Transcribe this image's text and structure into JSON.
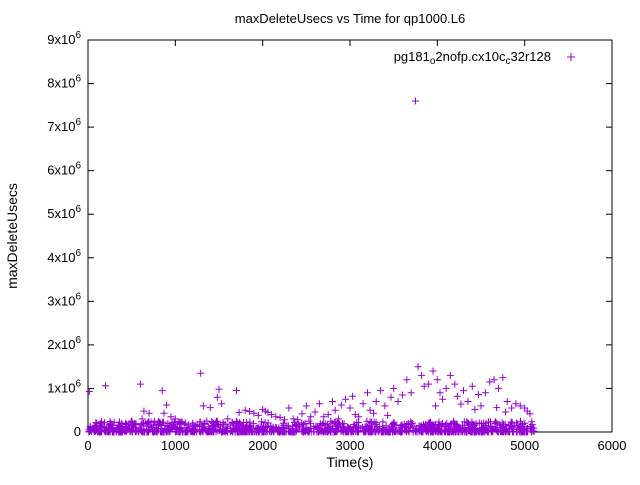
{
  "chart_data": {
    "type": "scatter",
    "title": "maxDeleteUsecs vs Time for qp1000.L6",
    "xlabel": "Time(s)",
    "ylabel": "maxDeleteUsecs",
    "xlim": [
      0,
      6000
    ],
    "ylim": [
      0,
      9000000
    ],
    "grid": false,
    "x_ticks": [
      0,
      1000,
      2000,
      3000,
      4000,
      5000,
      6000
    ],
    "x_tick_labels": [
      "0",
      "1000",
      "2000",
      "3000",
      "4000",
      "5000",
      "6000"
    ],
    "y_ticks": [
      0,
      1000000,
      2000000,
      3000000,
      4000000,
      5000000,
      6000000,
      7000000,
      8000000,
      9000000
    ],
    "y_tick_labels": [
      "0",
      "1x10^6",
      "2x10^6",
      "3x10^6",
      "4x10^6",
      "5x10^6",
      "6x10^6",
      "7x10^6",
      "8x10^6",
      "9x10^6"
    ],
    "legend": {
      "position": "top-right",
      "marker": "plus",
      "label_plain": "pg181_o2nofp.cx10c_c32r128",
      "label_segments": [
        {
          "t": "pg181"
        },
        {
          "t": "o",
          "sub": true
        },
        {
          "t": "2nofp.cx10c"
        },
        {
          "t": "c",
          "sub": true
        },
        {
          "t": "32r128"
        }
      ]
    },
    "series": [
      {
        "name": "pg181_o2nofp.cx10c_c32r128",
        "marker": "plus",
        "color": "#9400d3",
        "points": [
          [
            15,
            930000
          ],
          [
            100,
            200000
          ],
          [
            150,
            160000
          ],
          [
            200,
            1060000
          ],
          [
            250,
            180000
          ],
          [
            300,
            220000
          ],
          [
            350,
            160000
          ],
          [
            430,
            180000
          ],
          [
            500,
            250000
          ],
          [
            550,
            190000
          ],
          [
            600,
            1100000
          ],
          [
            620,
            300000
          ],
          [
            640,
            480000
          ],
          [
            700,
            430000
          ],
          [
            760,
            250000
          ],
          [
            800,
            170000
          ],
          [
            850,
            950000
          ],
          [
            870,
            430000
          ],
          [
            900,
            620000
          ],
          [
            950,
            350000
          ],
          [
            1000,
            300000
          ],
          [
            1050,
            200000
          ],
          [
            1100,
            180000
          ],
          [
            1150,
            160000
          ],
          [
            1200,
            200000
          ],
          [
            1250,
            170000
          ],
          [
            1290,
            1350000
          ],
          [
            1320,
            600000
          ],
          [
            1360,
            250000
          ],
          [
            1400,
            560000
          ],
          [
            1450,
            160000
          ],
          [
            1480,
            800000
          ],
          [
            1500,
            980000
          ],
          [
            1530,
            650000
          ],
          [
            1550,
            180000
          ],
          [
            1600,
            300000
          ],
          [
            1650,
            220000
          ],
          [
            1700,
            950000
          ],
          [
            1730,
            450000
          ],
          [
            1800,
            500000
          ],
          [
            1850,
            470000
          ],
          [
            1900,
            430000
          ],
          [
            1950,
            380000
          ],
          [
            2000,
            520000
          ],
          [
            2030,
            480000
          ],
          [
            2060,
            450000
          ],
          [
            2100,
            400000
          ],
          [
            2150,
            350000
          ],
          [
            2200,
            330000
          ],
          [
            2250,
            280000
          ],
          [
            2300,
            550000
          ],
          [
            2350,
            300000
          ],
          [
            2400,
            280000
          ],
          [
            2450,
            420000
          ],
          [
            2500,
            600000
          ],
          [
            2550,
            350000
          ],
          [
            2600,
            460000
          ],
          [
            2650,
            650000
          ],
          [
            2700,
            350000
          ],
          [
            2750,
            400000
          ],
          [
            2800,
            700000
          ],
          [
            2830,
            500000
          ],
          [
            2870,
            300000
          ],
          [
            2900,
            620000
          ],
          [
            2950,
            750000
          ],
          [
            3000,
            550000
          ],
          [
            3030,
            820000
          ],
          [
            3060,
            400000
          ],
          [
            3100,
            350000
          ],
          [
            3150,
            650000
          ],
          [
            3200,
            900000
          ],
          [
            3230,
            500000
          ],
          [
            3270,
            430000
          ],
          [
            3300,
            700000
          ],
          [
            3350,
            950000
          ],
          [
            3400,
            600000
          ],
          [
            3430,
            380000
          ],
          [
            3470,
            800000
          ],
          [
            3500,
            1000000
          ],
          [
            3550,
            700000
          ],
          [
            3600,
            850000
          ],
          [
            3650,
            1200000
          ],
          [
            3700,
            900000
          ],
          [
            3750,
            7600000
          ],
          [
            3780,
            1500000
          ],
          [
            3820,
            1300000
          ],
          [
            3850,
            1050000
          ],
          [
            3900,
            1100000
          ],
          [
            3950,
            1400000
          ],
          [
            3980,
            600000
          ],
          [
            4000,
            1200000
          ],
          [
            4030,
            900000
          ],
          [
            4060,
            750000
          ],
          [
            4100,
            1000000
          ],
          [
            4150,
            1300000
          ],
          [
            4200,
            1100000
          ],
          [
            4230,
            820000
          ],
          [
            4270,
            640000
          ],
          [
            4300,
            950000
          ],
          [
            4350,
            700000
          ],
          [
            4400,
            1050000
          ],
          [
            4430,
            520000
          ],
          [
            4470,
            860000
          ],
          [
            4500,
            600000
          ],
          [
            4550,
            900000
          ],
          [
            4600,
            1150000
          ],
          [
            4650,
            1200000
          ],
          [
            4680,
            560000
          ],
          [
            4700,
            1000000
          ],
          [
            4750,
            1250000
          ],
          [
            4780,
            460000
          ],
          [
            4800,
            700000
          ],
          [
            4850,
            550000
          ],
          [
            4900,
            650000
          ],
          [
            4950,
            600000
          ],
          [
            5000,
            550000
          ],
          [
            5030,
            480000
          ],
          [
            5060,
            420000
          ]
        ],
        "dense_band": {
          "count": 1100,
          "x_min": 0,
          "x_max": 5120,
          "y_max": 250000,
          "skew_exponent": 2.5,
          "seed": 42
        }
      }
    ]
  }
}
